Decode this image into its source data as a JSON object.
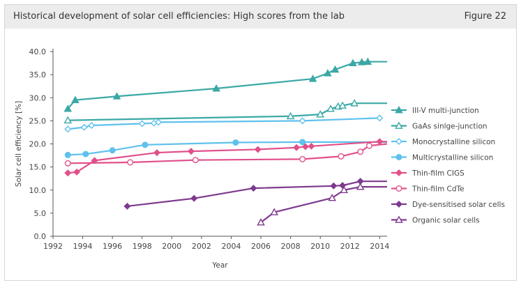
{
  "header": {
    "title": "Historical development of solar cell efficiencies: High scores from the lab",
    "figure_label": "Figure 22"
  },
  "chart_data": {
    "type": "line",
    "xlabel": "Year",
    "ylabel": "Solar cell efficiency [%]",
    "xlim": [
      1992,
      2014.5
    ],
    "ylim": [
      0,
      40
    ],
    "xticks": [
      1992,
      1994,
      1996,
      1998,
      2000,
      2002,
      2004,
      2006,
      2008,
      2010,
      2012,
      2014
    ],
    "yticks": [
      0,
      5,
      10,
      15,
      20,
      25,
      30,
      35,
      40
    ],
    "grid": false,
    "legend_position": "right",
    "series": [
      {
        "name": "III-V multi-junction",
        "color": "#3aa8a5",
        "marker": "triangle-filled",
        "x": [
          1993,
          1993.5,
          1996.3,
          2003,
          2009.5,
          2010.5,
          2011,
          2012.2,
          2012.8,
          2013.2,
          2014.5
        ],
        "y": [
          27.6,
          29.5,
          30.3,
          32.0,
          34.1,
          35.3,
          36.1,
          37.5,
          37.7,
          37.8,
          37.8
        ]
      },
      {
        "name": "GaAs sinlge-junction",
        "color": "#3aa8a5",
        "marker": "triangle-open",
        "x": [
          1993,
          2008,
          2010,
          2010.7,
          2011.2,
          2011.5,
          2012.3,
          2014.5
        ],
        "y": [
          25.1,
          26.0,
          26.4,
          27.6,
          28.1,
          28.3,
          28.8,
          28.8
        ]
      },
      {
        "name": "Monocrystalline silicon",
        "color": "#5fc1ec",
        "marker": "diamond-open",
        "x": [
          1993,
          1994.1,
          1994.6,
          1998,
          1998.8,
          1999.1,
          2008.8,
          2014
        ],
        "y": [
          23.2,
          23.6,
          24.0,
          24.4,
          24.5,
          24.7,
          25.0,
          25.6
        ]
      },
      {
        "name": "Multicrystalline silicon",
        "color": "#5fc1ec",
        "marker": "circle-filled",
        "x": [
          1993,
          1994.2,
          1996,
          1998.2,
          2004.3,
          2008.8,
          2014.5
        ],
        "y": [
          17.6,
          17.8,
          18.6,
          19.8,
          20.3,
          20.4,
          20.4
        ]
      },
      {
        "name": "Thin-film CIGS",
        "color": "#e0508a",
        "marker": "diamond-filled",
        "x": [
          1993,
          1993.6,
          1994.8,
          1999,
          2001.3,
          2005.8,
          2008.4,
          2009,
          2009.4,
          2014,
          2014.5
        ],
        "y": [
          13.7,
          13.9,
          16.4,
          18.1,
          18.4,
          18.8,
          19.2,
          19.4,
          19.5,
          20.5,
          20.5
        ]
      },
      {
        "name": "Thin-film CdTe",
        "color": "#e0508a",
        "marker": "circle-open",
        "x": [
          1993,
          1997.2,
          2001.6,
          2008.8,
          2011.4,
          2012.7,
          2013.3,
          2014.5
        ],
        "y": [
          15.8,
          16.0,
          16.5,
          16.7,
          17.3,
          18.3,
          19.6,
          20.0
        ]
      },
      {
        "name": "Dye-sensitised solar cells",
        "color": "#7d3a8e",
        "marker": "diamond-filled",
        "x": [
          1997,
          2001.5,
          2005.5,
          2010.9,
          2011.5,
          2012.7,
          2014.5
        ],
        "y": [
          6.5,
          8.2,
          10.4,
          10.9,
          11.0,
          11.9,
          11.9
        ]
      },
      {
        "name": "Organic solar cells",
        "color": "#7d3a8e",
        "marker": "triangle-open",
        "x": [
          2006,
          2006.9,
          2010.8,
          2011.6,
          2012.7,
          2014.5
        ],
        "y": [
          3.0,
          5.2,
          8.3,
          10.0,
          10.7,
          10.7
        ]
      }
    ]
  }
}
